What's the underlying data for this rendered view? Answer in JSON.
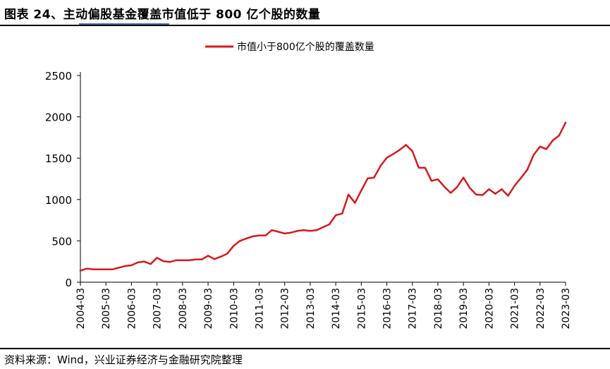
{
  "header": {
    "title": "图表 24、主动偏股基金覆盖市值低于 800 亿个股的数量"
  },
  "footer": {
    "source": "资料来源：Wind，兴业证券经济与金融研究院整理"
  },
  "colors": {
    "line": "#d7191c",
    "axis": "#000000"
  },
  "chart_data": {
    "type": "line",
    "title": "",
    "xlabel": "",
    "ylabel": "",
    "ylim": [
      0,
      2500
    ],
    "yticks": [
      0,
      500,
      1000,
      1500,
      2000,
      2500
    ],
    "xticks": [
      "2004-03",
      "2005-03",
      "2006-03",
      "2007-03",
      "2008-03",
      "2009-03",
      "2010-03",
      "2011-03",
      "2012-03",
      "2013-03",
      "2014-03",
      "2015-03",
      "2016-03",
      "2017-03",
      "2018-03",
      "2019-03",
      "2020-03",
      "2021-03",
      "2022-03",
      "2023-03"
    ],
    "legend": "top-center",
    "series": [
      {
        "name": "市值小于800亿个股的覆盖数量",
        "x": [
          "2004-03",
          "2004-06",
          "2004-09",
          "2004-12",
          "2005-03",
          "2005-06",
          "2005-09",
          "2005-12",
          "2006-03",
          "2006-06",
          "2006-09",
          "2006-12",
          "2007-03",
          "2007-06",
          "2007-09",
          "2007-12",
          "2008-03",
          "2008-06",
          "2008-09",
          "2008-12",
          "2009-03",
          "2009-06",
          "2009-09",
          "2009-12",
          "2010-03",
          "2010-06",
          "2010-09",
          "2010-12",
          "2011-03",
          "2011-06",
          "2011-09",
          "2011-12",
          "2012-03",
          "2012-06",
          "2012-09",
          "2012-12",
          "2013-03",
          "2013-06",
          "2013-09",
          "2013-12",
          "2014-03",
          "2014-06",
          "2014-09",
          "2014-12",
          "2015-03",
          "2015-06",
          "2015-09",
          "2015-12",
          "2016-03",
          "2016-06",
          "2016-09",
          "2016-12",
          "2017-03",
          "2017-06",
          "2017-09",
          "2017-12",
          "2018-03",
          "2018-06",
          "2018-09",
          "2018-12",
          "2019-03",
          "2019-06",
          "2019-09",
          "2019-12",
          "2020-03",
          "2020-06",
          "2020-09",
          "2020-12",
          "2021-03",
          "2021-06",
          "2021-09",
          "2021-12",
          "2022-03",
          "2022-06",
          "2022-09",
          "2022-12",
          "2023-03"
        ],
        "values": [
          140,
          165,
          155,
          155,
          155,
          155,
          175,
          195,
          205,
          240,
          250,
          220,
          295,
          255,
          245,
          265,
          265,
          265,
          275,
          275,
          320,
          280,
          310,
          345,
          440,
          500,
          530,
          555,
          565,
          565,
          630,
          610,
          590,
          600,
          620,
          630,
          620,
          630,
          665,
          700,
          810,
          830,
          1060,
          960,
          1110,
          1255,
          1265,
          1405,
          1505,
          1550,
          1600,
          1660,
          1585,
          1385,
          1385,
          1225,
          1245,
          1155,
          1080,
          1150,
          1265,
          1140,
          1060,
          1055,
          1125,
          1070,
          1125,
          1045,
          1165,
          1260,
          1360,
          1540,
          1640,
          1610,
          1715,
          1775,
          1930
        ]
      }
    ]
  }
}
